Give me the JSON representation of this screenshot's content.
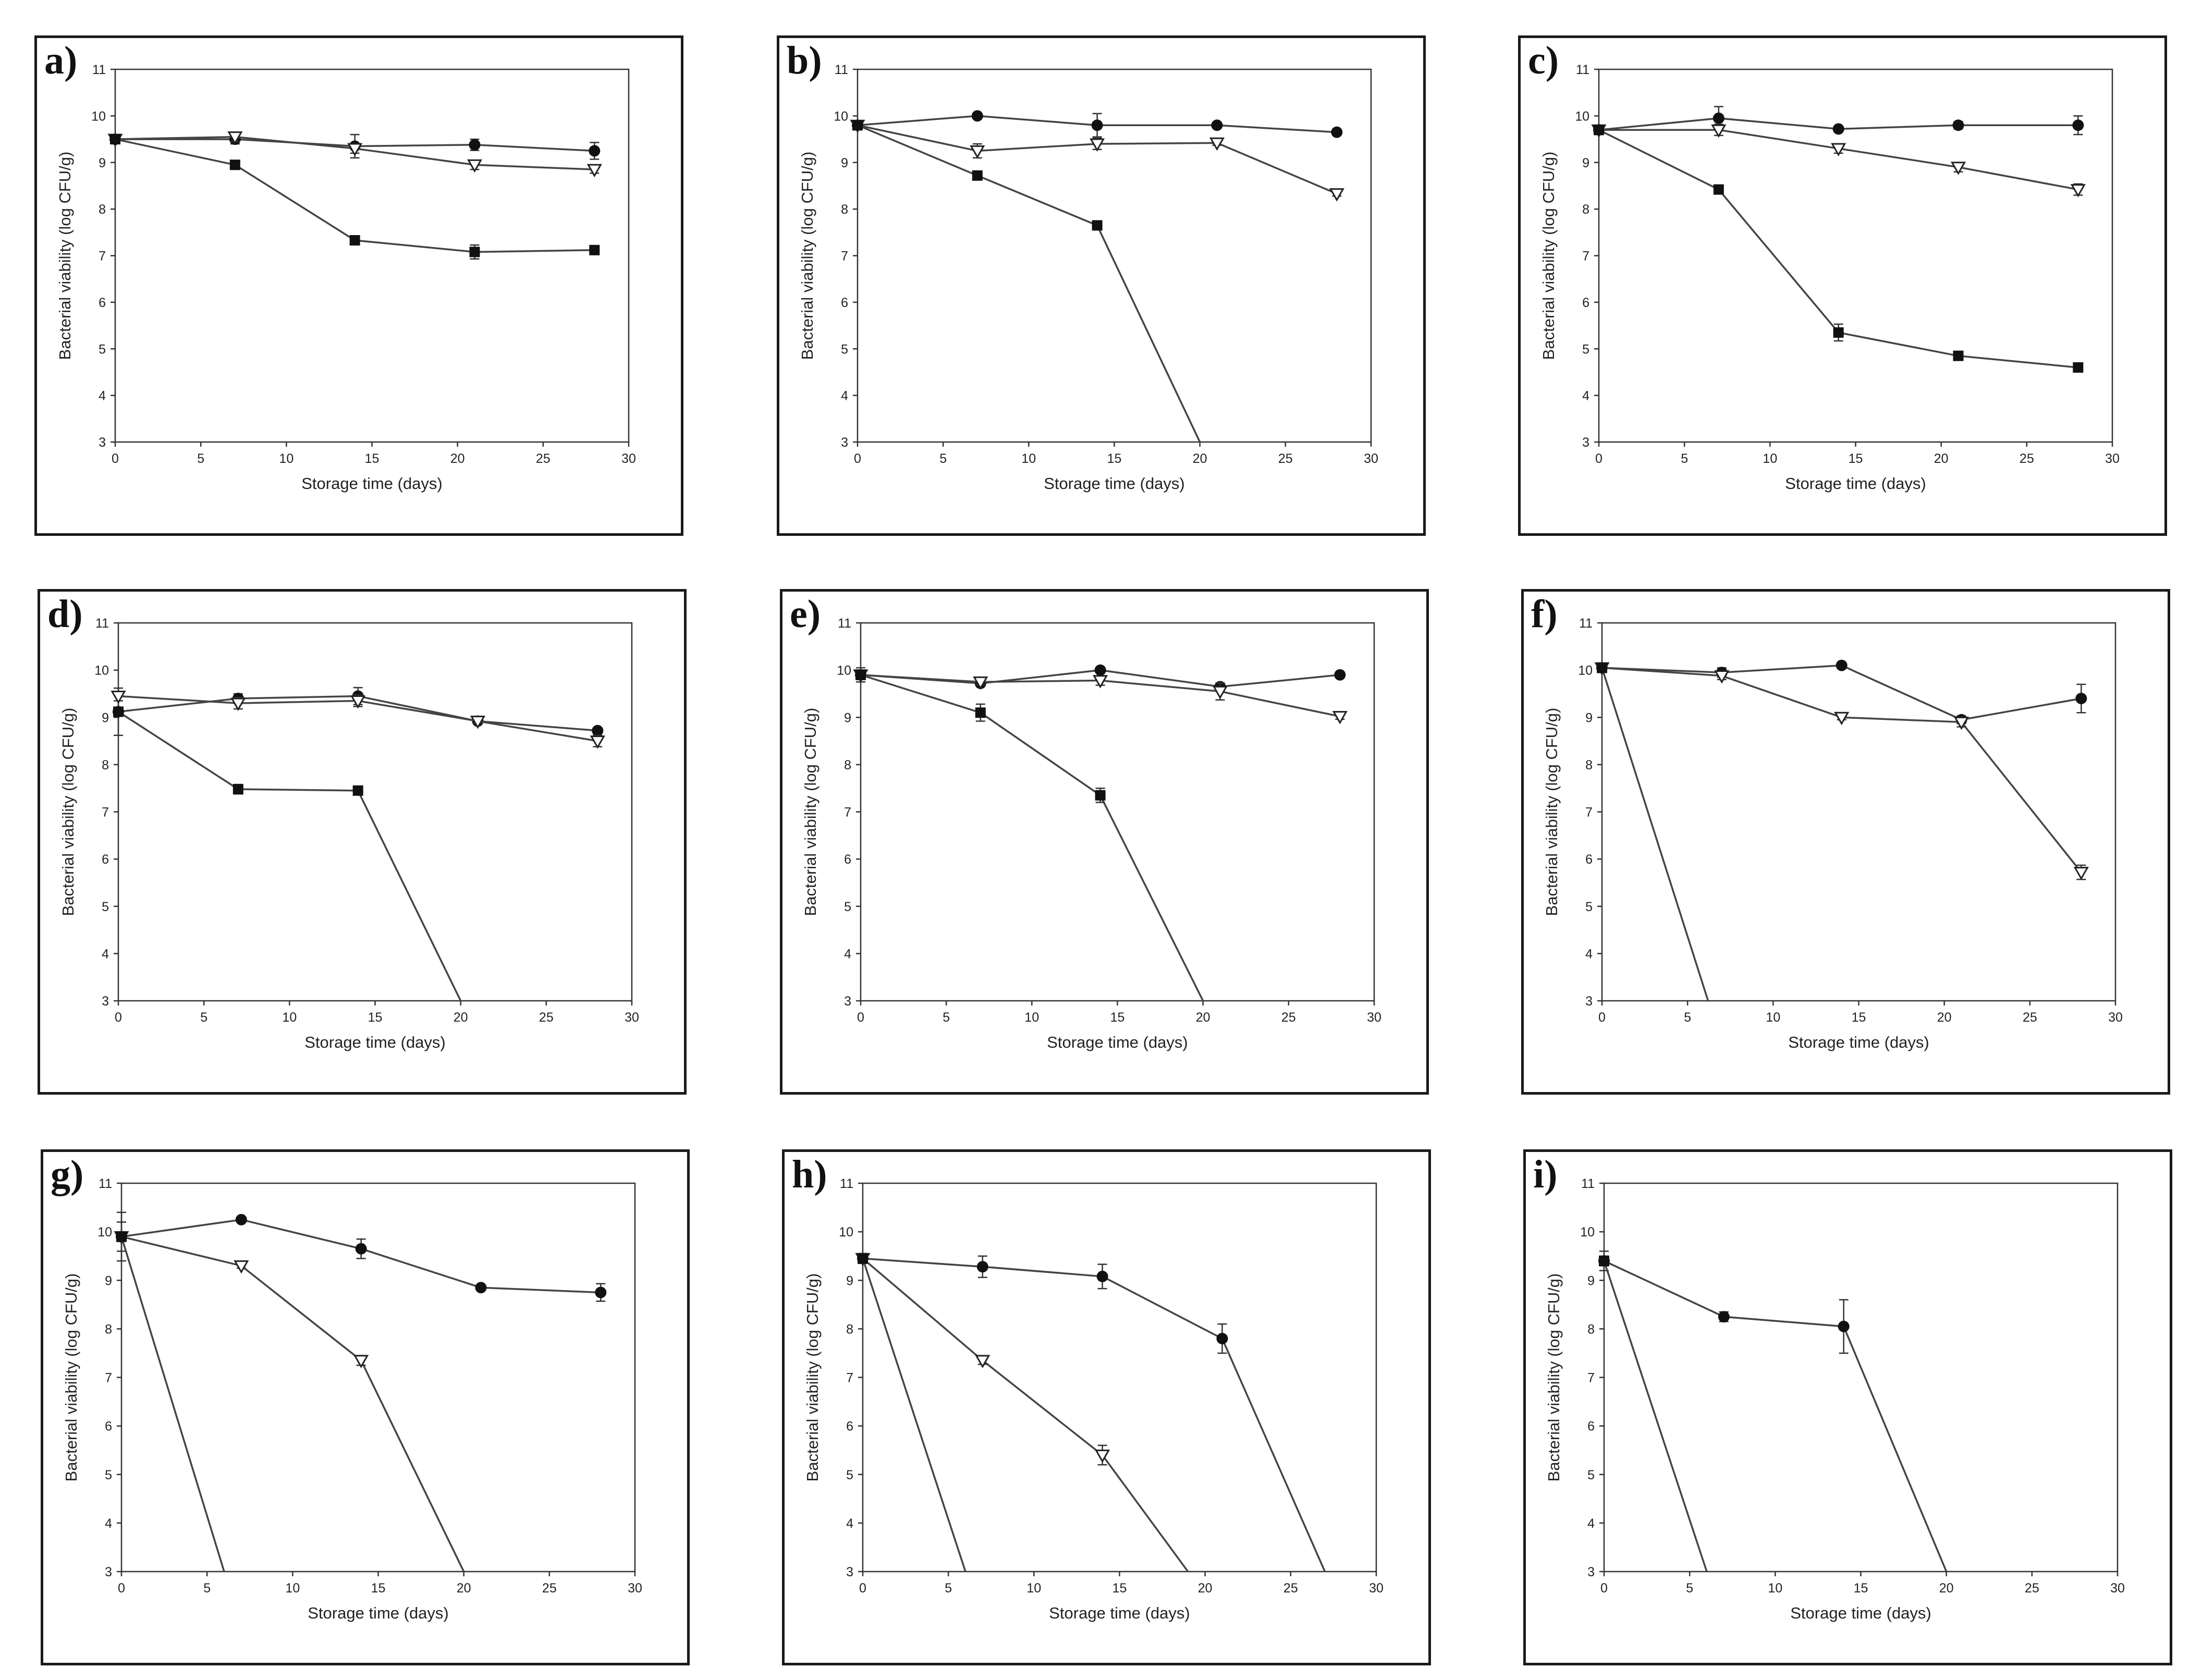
{
  "figure": {
    "xlabel": "Storage time (days)",
    "ylabel": "Bacterial viability (log CFU/g)"
  },
  "chart_data": [
    {
      "panel": "a)",
      "type": "line",
      "xlabel": "Storage time (days)",
      "ylabel": "Bacterial viability (log CFU/g)",
      "xlim": [
        0,
        30
      ],
      "ylim": [
        3,
        11
      ],
      "xticks": [
        0,
        5,
        10,
        15,
        20,
        25,
        30
      ],
      "yticks": [
        3,
        4,
        5,
        6,
        7,
        8,
        9,
        10,
        11
      ],
      "series": [
        {
          "marker": "circle",
          "x": [
            0,
            7,
            14,
            21,
            28
          ],
          "y": [
            9.5,
            9.5,
            9.35,
            9.38,
            9.25
          ],
          "err": [
            0.05,
            0.1,
            0.25,
            0.12,
            0.18
          ]
        },
        {
          "marker": "triangle",
          "x": [
            0,
            7,
            14,
            21,
            28
          ],
          "y": [
            9.5,
            9.55,
            9.3,
            8.95,
            8.85
          ],
          "err": [
            0.05,
            0.1,
            0.1,
            0.1,
            0.08
          ]
        },
        {
          "marker": "square",
          "x": [
            0,
            7,
            14,
            21,
            28
          ],
          "y": [
            9.5,
            8.95,
            7.33,
            7.08,
            7.12
          ],
          "err": [
            0.05,
            0.05,
            0.08,
            0.15,
            0.06
          ]
        }
      ]
    },
    {
      "panel": "b)",
      "type": "line",
      "xlabel": "Storage time (days)",
      "ylabel": "Bacterial viability (log CFU/g)",
      "xlim": [
        0,
        30
      ],
      "ylim": [
        3,
        11
      ],
      "xticks": [
        0,
        5,
        10,
        15,
        20,
        25,
        30
      ],
      "yticks": [
        3,
        4,
        5,
        6,
        7,
        8,
        9,
        10,
        11
      ],
      "series": [
        {
          "marker": "circle",
          "x": [
            0,
            7,
            14,
            21,
            28
          ],
          "y": [
            9.8,
            10.0,
            9.8,
            9.8,
            9.65
          ],
          "err": [
            0.1,
            0.05,
            0.25,
            0.05,
            0.06
          ]
        },
        {
          "marker": "triangle",
          "x": [
            0,
            7,
            14,
            21,
            28
          ],
          "y": [
            9.8,
            9.25,
            9.4,
            9.42,
            8.33
          ],
          "err": [
            0.1,
            0.15,
            0.12,
            0.05,
            0.05
          ]
        },
        {
          "marker": "square",
          "x": [
            0,
            7,
            14,
            20
          ],
          "y": [
            9.8,
            8.72,
            7.65,
            3.0
          ],
          "err": [
            0.1,
            0.08,
            0.08,
            0
          ]
        }
      ]
    },
    {
      "panel": "c)",
      "type": "line",
      "xlabel": "Storage time (days)",
      "ylabel": "Bacterial viability (log CFU/g)",
      "xlim": [
        0,
        30
      ],
      "ylim": [
        3,
        11
      ],
      "xticks": [
        0,
        5,
        10,
        15,
        20,
        25,
        30
      ],
      "yticks": [
        3,
        4,
        5,
        6,
        7,
        8,
        9,
        10,
        11
      ],
      "series": [
        {
          "marker": "circle",
          "x": [
            0,
            7,
            14,
            21,
            28
          ],
          "y": [
            9.7,
            9.95,
            9.72,
            9.8,
            9.8
          ],
          "err": [
            0.1,
            0.25,
            0.05,
            0.08,
            0.2
          ]
        },
        {
          "marker": "triangle",
          "x": [
            0,
            7,
            14,
            21,
            28
          ],
          "y": [
            9.7,
            9.7,
            9.3,
            8.9,
            8.42
          ],
          "err": [
            0.1,
            0.12,
            0.1,
            0.1,
            0.12
          ]
        },
        {
          "marker": "square",
          "x": [
            0,
            7,
            14,
            21,
            28
          ],
          "y": [
            9.7,
            8.42,
            5.35,
            4.85,
            4.6
          ],
          "err": [
            0.1,
            0.05,
            0.18,
            0.06,
            0.08
          ]
        }
      ]
    },
    {
      "panel": "d)",
      "type": "line",
      "xlabel": "Storage time (days)",
      "ylabel": "Bacterial viability (log CFU/g)",
      "xlim": [
        0,
        30
      ],
      "ylim": [
        3,
        11
      ],
      "xticks": [
        0,
        5,
        10,
        15,
        20,
        25,
        30
      ],
      "yticks": [
        3,
        4,
        5,
        6,
        7,
        8,
        9,
        10,
        11
      ],
      "series": [
        {
          "marker": "circle",
          "x": [
            0,
            7,
            14,
            21,
            28
          ],
          "y": [
            9.12,
            9.4,
            9.45,
            8.92,
            8.72
          ],
          "err": [
            0.5,
            0.1,
            0.18,
            0.05,
            0.05
          ]
        },
        {
          "marker": "triangle",
          "x": [
            0,
            7,
            14,
            21,
            28
          ],
          "y": [
            9.45,
            9.3,
            9.35,
            8.92,
            8.5
          ],
          "err": [
            0.1,
            0.12,
            0.12,
            0.05,
            0.12
          ]
        },
        {
          "marker": "square",
          "x": [
            0,
            7,
            14,
            20
          ],
          "y": [
            9.12,
            7.48,
            7.45,
            3.0
          ],
          "err": [
            0.05,
            0.1,
            0.08,
            0
          ]
        }
      ]
    },
    {
      "panel": "e)",
      "type": "line",
      "xlabel": "Storage time (days)",
      "ylabel": "Bacterial viability (log CFU/g)",
      "xlim": [
        0,
        30
      ],
      "ylim": [
        3,
        11
      ],
      "xticks": [
        0,
        5,
        10,
        15,
        20,
        25,
        30
      ],
      "yticks": [
        3,
        4,
        5,
        6,
        7,
        8,
        9,
        10,
        11
      ],
      "series": [
        {
          "marker": "circle",
          "x": [
            0,
            7,
            14,
            21,
            28
          ],
          "y": [
            9.9,
            9.72,
            10.0,
            9.65,
            9.9
          ],
          "err": [
            0.15,
            0.06,
            0.05,
            0.08,
            0.05
          ]
        },
        {
          "marker": "triangle",
          "x": [
            0,
            7,
            14,
            21,
            28
          ],
          "y": [
            9.9,
            9.75,
            9.78,
            9.55,
            9.02
          ],
          "err": [
            0.1,
            0.06,
            0.1,
            0.18,
            0.06
          ]
        },
        {
          "marker": "square",
          "x": [
            0,
            7,
            14,
            20
          ],
          "y": [
            9.9,
            9.1,
            7.35,
            3.0
          ],
          "err": [
            0.1,
            0.18,
            0.15,
            0
          ]
        }
      ]
    },
    {
      "panel": "f)",
      "type": "line",
      "xlabel": "Storage time (days)",
      "ylabel": "Bacterial viability (log CFU/g)",
      "xlim": [
        0,
        30
      ],
      "ylim": [
        3,
        11
      ],
      "xticks": [
        0,
        5,
        10,
        15,
        20,
        25,
        30
      ],
      "yticks": [
        3,
        4,
        5,
        6,
        7,
        8,
        9,
        10,
        11
      ],
      "series": [
        {
          "marker": "circle",
          "x": [
            0,
            7,
            14,
            21,
            28
          ],
          "y": [
            10.05,
            9.95,
            10.1,
            8.95,
            9.4
          ],
          "err": [
            0.1,
            0.1,
            0.05,
            0.08,
            0.3
          ]
        },
        {
          "marker": "triangle",
          "x": [
            0,
            7,
            14,
            21,
            28
          ],
          "y": [
            10.05,
            9.88,
            9.0,
            8.9,
            5.72
          ],
          "err": [
            0.1,
            0.08,
            0.05,
            0.1,
            0.15
          ]
        },
        {
          "marker": "square",
          "x": [
            0,
            6.2
          ],
          "y": [
            10.05,
            3.0
          ],
          "err": [
            0.1,
            0
          ]
        }
      ]
    },
    {
      "panel": "g)",
      "type": "line",
      "xlabel": "Storage time (days)",
      "ylabel": "Bacterial viability (log CFU/g)",
      "xlim": [
        0,
        30
      ],
      "ylim": [
        3,
        11
      ],
      "xticks": [
        0,
        5,
        10,
        15,
        20,
        25,
        30
      ],
      "yticks": [
        3,
        4,
        5,
        6,
        7,
        8,
        9,
        10,
        11
      ],
      "series": [
        {
          "marker": "circle",
          "x": [
            0,
            7,
            14,
            21,
            28
          ],
          "y": [
            9.9,
            10.25,
            9.65,
            8.85,
            8.75
          ],
          "err": [
            0.5,
            0.05,
            0.2,
            0.05,
            0.18
          ]
        },
        {
          "marker": "triangle",
          "x": [
            0,
            7,
            14,
            20
          ],
          "y": [
            9.9,
            9.3,
            7.35,
            3.0
          ],
          "err": [
            0.3,
            0.05,
            0.1,
            0
          ]
        },
        {
          "marker": "square",
          "x": [
            0,
            6
          ],
          "y": [
            9.9,
            3.0
          ],
          "err": [
            0.1,
            0
          ]
        }
      ]
    },
    {
      "panel": "h)",
      "type": "line",
      "xlabel": "Storage time (days)",
      "ylabel": "Bacterial viability (log CFU/g)",
      "xlim": [
        0,
        30
      ],
      "ylim": [
        3,
        11
      ],
      "xticks": [
        0,
        5,
        10,
        15,
        20,
        25,
        30
      ],
      "yticks": [
        3,
        4,
        5,
        6,
        7,
        8,
        9,
        10,
        11
      ],
      "series": [
        {
          "marker": "circle",
          "x": [
            0,
            7,
            14,
            21,
            27
          ],
          "y": [
            9.45,
            9.28,
            9.08,
            7.8,
            3.0
          ],
          "err": [
            0.1,
            0.22,
            0.25,
            0.3,
            0
          ]
        },
        {
          "marker": "triangle",
          "x": [
            0,
            7,
            14,
            19
          ],
          "y": [
            9.45,
            7.35,
            5.4,
            3.0
          ],
          "err": [
            0.1,
            0.08,
            0.2,
            0
          ]
        },
        {
          "marker": "square",
          "x": [
            0,
            6
          ],
          "y": [
            9.45,
            3.0
          ],
          "err": [
            0.1,
            0
          ]
        }
      ]
    },
    {
      "panel": "i)",
      "type": "line",
      "xlabel": "Storage time (days)",
      "ylabel": "Bacterial viability (log CFU/g)",
      "xlim": [
        0,
        30
      ],
      "ylim": [
        3,
        11
      ],
      "xticks": [
        0,
        5,
        10,
        15,
        20,
        25,
        30
      ],
      "yticks": [
        3,
        4,
        5,
        6,
        7,
        8,
        9,
        10,
        11
      ],
      "series": [
        {
          "marker": "circle",
          "x": [
            0,
            7,
            14,
            20
          ],
          "y": [
            9.4,
            8.25,
            8.05,
            3.0
          ],
          "err": [
            0.2,
            0.1,
            0.55,
            0
          ]
        },
        {
          "marker": "square",
          "x": [
            0,
            6
          ],
          "y": [
            9.4,
            3.0
          ],
          "err": [
            0.1,
            0
          ]
        }
      ]
    }
  ]
}
